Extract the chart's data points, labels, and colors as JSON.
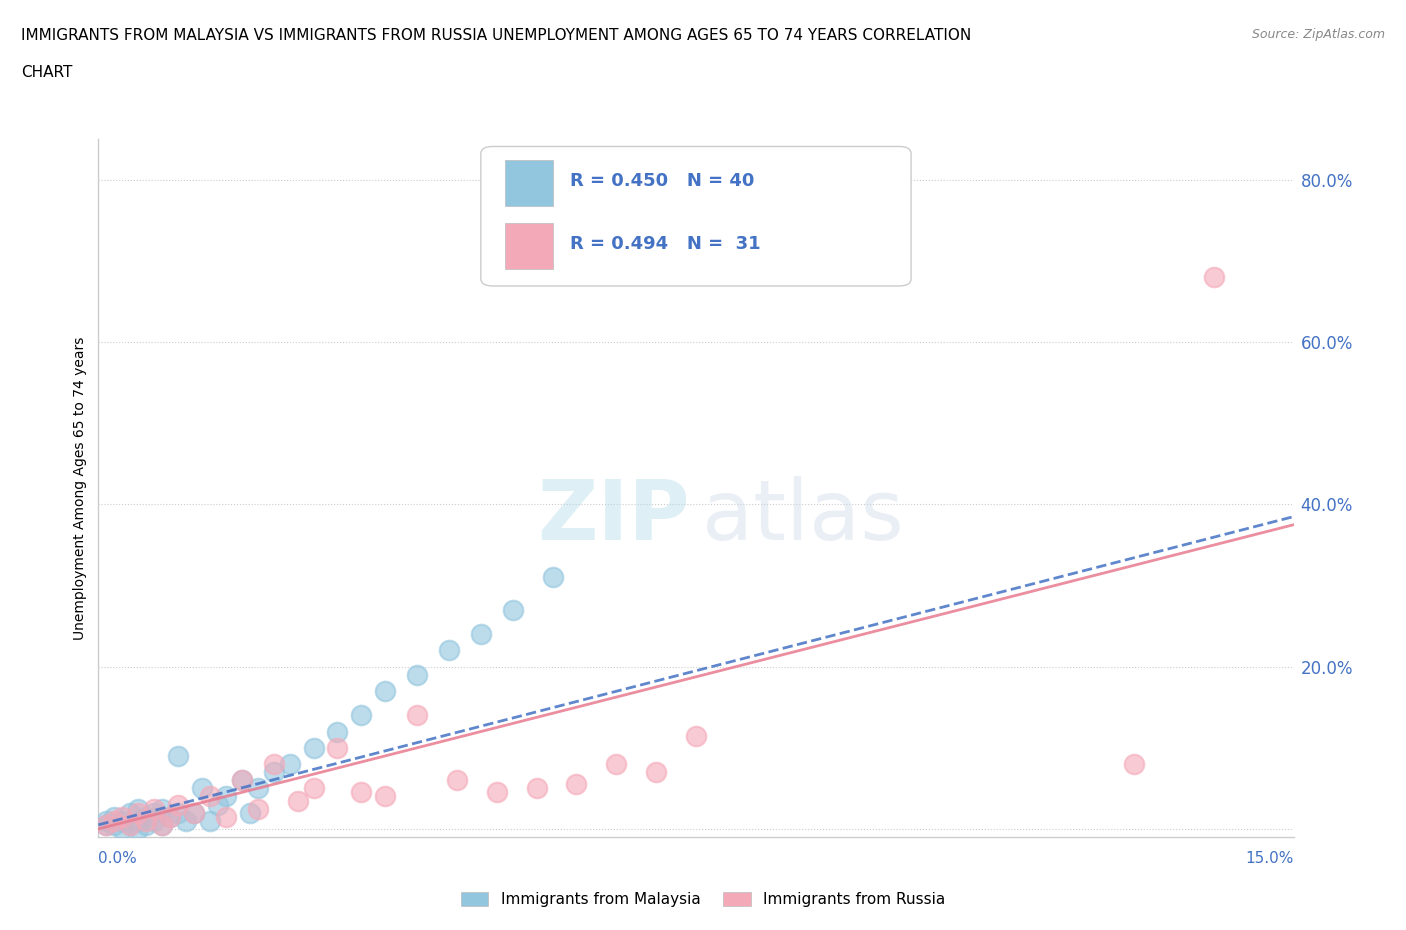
{
  "title_line1": "IMMIGRANTS FROM MALAYSIA VS IMMIGRANTS FROM RUSSIA UNEMPLOYMENT AMONG AGES 65 TO 74 YEARS CORRELATION",
  "title_line2": "CHART",
  "source_text": "Source: ZipAtlas.com",
  "ylabel": "Unemployment Among Ages 65 to 74 years",
  "xlim": [
    0.0,
    0.15
  ],
  "ylim": [
    -0.01,
    0.85
  ],
  "malaysia_color": "#92C5DE",
  "russia_color": "#F4A9B8",
  "malaysia_R": 0.45,
  "malaysia_N": 40,
  "russia_R": 0.494,
  "russia_N": 31,
  "legend_R_color": "#4472C4",
  "ytick_vals": [
    0.0,
    0.2,
    0.4,
    0.6,
    0.8
  ],
  "ytick_labels": [
    "",
    "20.0%",
    "40.0%",
    "60.0%",
    "80.0%"
  ],
  "malaysia_x": [
    0.001,
    0.001,
    0.002,
    0.002,
    0.003,
    0.003,
    0.004,
    0.004,
    0.005,
    0.005,
    0.005,
    0.006,
    0.006,
    0.007,
    0.007,
    0.008,
    0.008,
    0.009,
    0.01,
    0.01,
    0.011,
    0.012,
    0.013,
    0.014,
    0.015,
    0.016,
    0.018,
    0.019,
    0.02,
    0.022,
    0.024,
    0.027,
    0.03,
    0.033,
    0.036,
    0.04,
    0.044,
    0.048,
    0.052,
    0.057
  ],
  "malaysia_y": [
    0.005,
    0.01,
    0.005,
    0.015,
    0.0,
    0.01,
    0.005,
    0.02,
    0.0,
    0.01,
    0.025,
    0.005,
    0.015,
    0.01,
    0.02,
    0.005,
    0.025,
    0.015,
    0.02,
    0.09,
    0.01,
    0.02,
    0.05,
    0.01,
    0.03,
    0.04,
    0.06,
    0.02,
    0.05,
    0.07,
    0.08,
    0.1,
    0.12,
    0.14,
    0.17,
    0.19,
    0.22,
    0.24,
    0.27,
    0.31
  ],
  "russia_x": [
    0.001,
    0.002,
    0.003,
    0.004,
    0.005,
    0.006,
    0.007,
    0.008,
    0.009,
    0.01,
    0.012,
    0.014,
    0.016,
    0.018,
    0.02,
    0.022,
    0.025,
    0.027,
    0.03,
    0.033,
    0.036,
    0.04,
    0.045,
    0.05,
    0.055,
    0.06,
    0.065,
    0.07,
    0.075,
    0.13,
    0.14
  ],
  "russia_y": [
    0.005,
    0.01,
    0.015,
    0.005,
    0.02,
    0.01,
    0.025,
    0.005,
    0.015,
    0.03,
    0.02,
    0.04,
    0.015,
    0.06,
    0.025,
    0.08,
    0.035,
    0.05,
    0.1,
    0.045,
    0.04,
    0.14,
    0.06,
    0.045,
    0.05,
    0.055,
    0.08,
    0.07,
    0.115,
    0.08,
    0.68
  ],
  "mal_trend_x0": 0.0,
  "mal_trend_x1": 0.15,
  "mal_trend_y0": 0.005,
  "mal_trend_y1": 0.385,
  "rus_trend_x0": 0.0,
  "rus_trend_x1": 0.15,
  "rus_trend_y0": 0.0,
  "rus_trend_y1": 0.375,
  "watermark_zip": "ZIP",
  "watermark_atlas": "atlas"
}
